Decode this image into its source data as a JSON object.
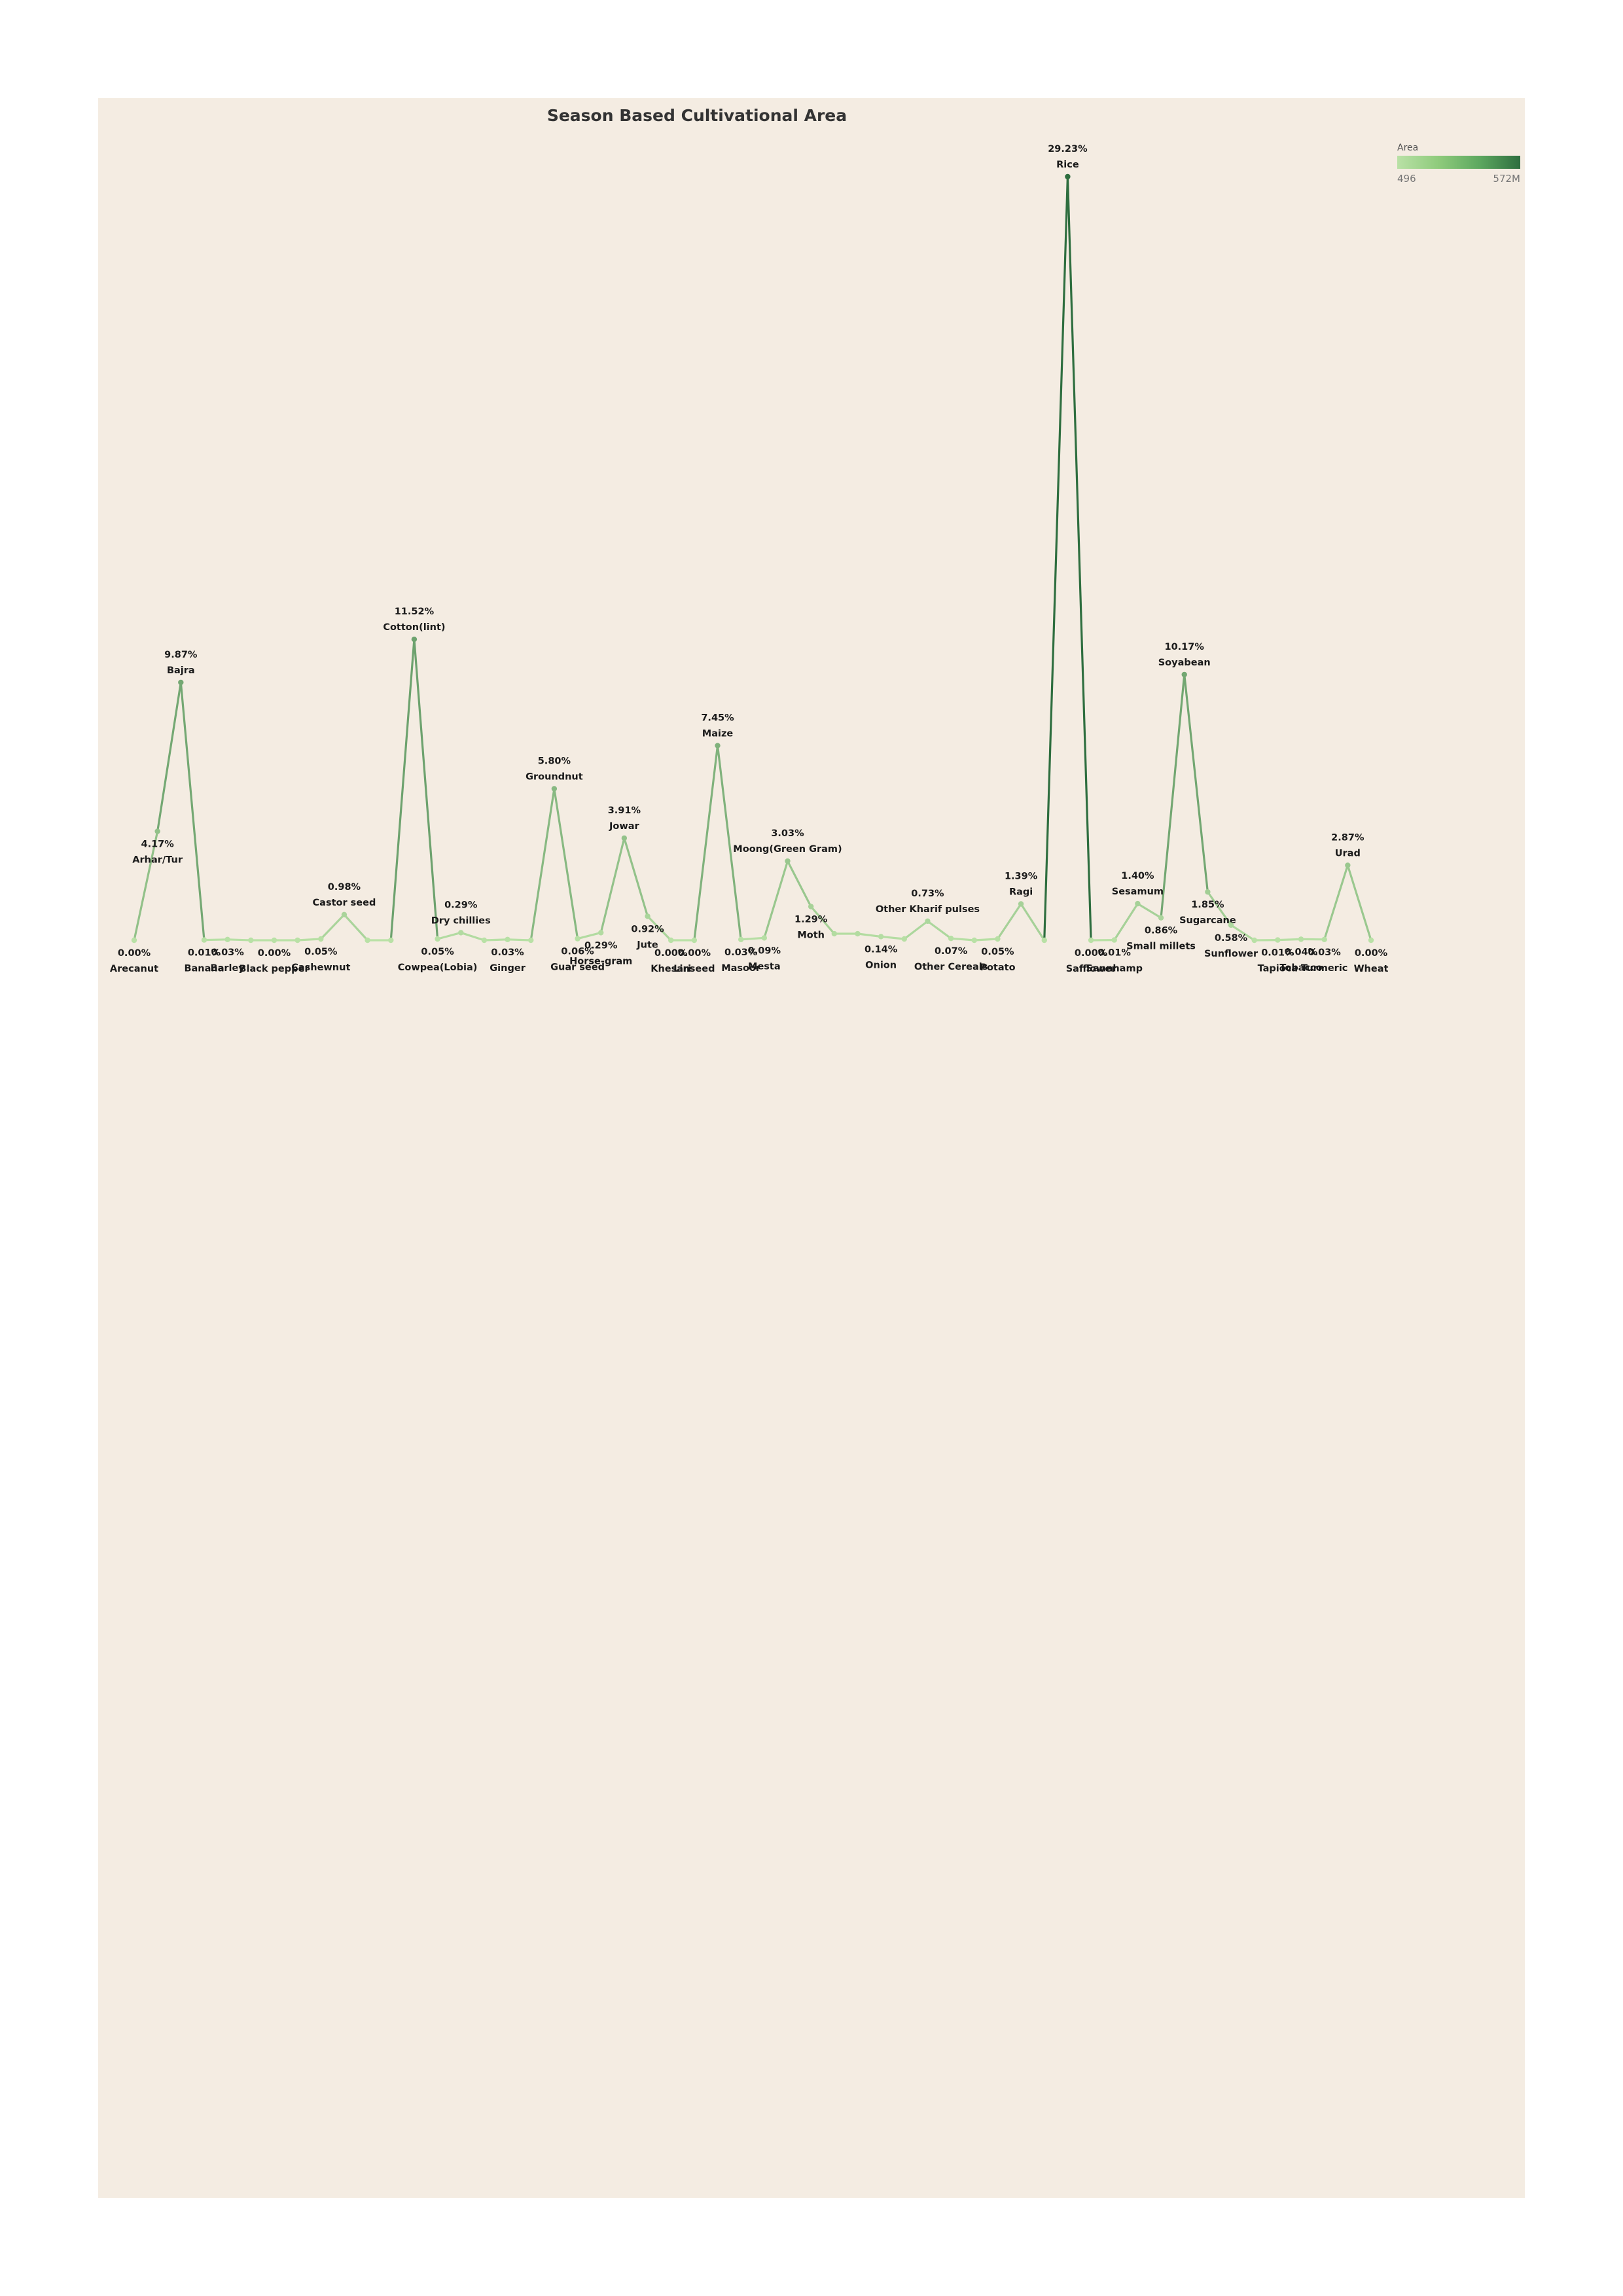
{
  "chart_data": {
    "type": "line",
    "title": "Season Based Cultivational Area",
    "legend": {
      "title": "Area",
      "min_label": "496",
      "max_label": "572M"
    },
    "points": [
      {
        "name": "Arecanut",
        "pct": "0.00%",
        "value": 0.0,
        "labeled": true
      },
      {
        "name": "Arhar/Tur",
        "pct": "4.17%",
        "value": 4.17,
        "labeled": true
      },
      {
        "name": "Bajra",
        "pct": "9.87%",
        "value": 9.87,
        "labeled": true
      },
      {
        "name": "Banana",
        "pct": "0.01%",
        "value": 0.01,
        "labeled": true
      },
      {
        "name": "Barley",
        "pct": "0.03%",
        "value": 0.03,
        "labeled": true
      },
      {
        "name": "",
        "pct": "",
        "value": 0.0,
        "labeled": false
      },
      {
        "name": "Black pepper",
        "pct": "0.00%",
        "value": 0.0,
        "labeled": true
      },
      {
        "name": "",
        "pct": "",
        "value": 0.0,
        "labeled": false
      },
      {
        "name": "Cashewnut",
        "pct": "0.05%",
        "value": 0.05,
        "labeled": true
      },
      {
        "name": "Castor seed",
        "pct": "0.98%",
        "value": 0.98,
        "labeled": true
      },
      {
        "name": "",
        "pct": "",
        "value": 0.0,
        "labeled": false
      },
      {
        "name": "",
        "pct": "",
        "value": 0.0,
        "labeled": false
      },
      {
        "name": "Cotton(lint)",
        "pct": "11.52%",
        "value": 11.52,
        "labeled": true
      },
      {
        "name": "Cowpea(Lobia)",
        "pct": "0.05%",
        "value": 0.05,
        "labeled": true
      },
      {
        "name": "Dry chillies",
        "pct": "0.29%",
        "value": 0.29,
        "labeled": true
      },
      {
        "name": "",
        "pct": "",
        "value": 0.0,
        "labeled": false
      },
      {
        "name": "Ginger",
        "pct": "0.03%",
        "value": 0.03,
        "labeled": true
      },
      {
        "name": "",
        "pct": "",
        "value": 0.0,
        "labeled": false
      },
      {
        "name": "Groundnut",
        "pct": "5.80%",
        "value": 5.8,
        "labeled": true
      },
      {
        "name": "Guar seed",
        "pct": "0.06%",
        "value": 0.06,
        "labeled": true
      },
      {
        "name": "Horse-gram",
        "pct": "0.29%",
        "value": 0.29,
        "labeled": true
      },
      {
        "name": "Jowar",
        "pct": "3.91%",
        "value": 3.91,
        "labeled": true
      },
      {
        "name": "Jute",
        "pct": "0.92%",
        "value": 0.92,
        "labeled": true
      },
      {
        "name": "Khesari",
        "pct": "0.00%",
        "value": 0.0,
        "labeled": true
      },
      {
        "name": "Linseed",
        "pct": "0.00%",
        "value": 0.0,
        "labeled": true
      },
      {
        "name": "Maize",
        "pct": "7.45%",
        "value": 7.45,
        "labeled": true
      },
      {
        "name": "Masoor",
        "pct": "0.03%",
        "value": 0.03,
        "labeled": true
      },
      {
        "name": "Mesta",
        "pct": "0.09%",
        "value": 0.09,
        "labeled": true
      },
      {
        "name": "Moong(Green Gram)",
        "pct": "3.03%",
        "value": 3.03,
        "labeled": true
      },
      {
        "name": "Moth",
        "pct": "1.29%",
        "value": 1.29,
        "labeled": true
      },
      {
        "name": "",
        "pct": "",
        "value": 0.25,
        "labeled": false
      },
      {
        "name": "",
        "pct": "",
        "value": 0.25,
        "labeled": false
      },
      {
        "name": "Onion",
        "pct": "0.14%",
        "value": 0.14,
        "labeled": true
      },
      {
        "name": "",
        "pct": "",
        "value": 0.05,
        "labeled": false
      },
      {
        "name": "Other Kharif pulses",
        "pct": "0.73%",
        "value": 0.73,
        "labeled": true
      },
      {
        "name": "Other Cereals",
        "pct": "0.07%",
        "value": 0.07,
        "labeled": true
      },
      {
        "name": "",
        "pct": "",
        "value": 0.0,
        "labeled": false
      },
      {
        "name": "Potato",
        "pct": "0.05%",
        "value": 0.05,
        "labeled": true
      },
      {
        "name": "Ragi",
        "pct": "1.39%",
        "value": 1.39,
        "labeled": true
      },
      {
        "name": "",
        "pct": "",
        "value": 0.0,
        "labeled": false
      },
      {
        "name": "Rice",
        "pct": "29.23%",
        "value": 29.23,
        "labeled": true
      },
      {
        "name": "Safflower",
        "pct": "0.00%",
        "value": 0.0,
        "labeled": true
      },
      {
        "name": "Sannhamp",
        "pct": "0.01%",
        "value": 0.01,
        "labeled": true
      },
      {
        "name": "Sesamum",
        "pct": "1.40%",
        "value": 1.4,
        "labeled": true
      },
      {
        "name": "Small millets",
        "pct": "0.86%",
        "value": 0.86,
        "labeled": true
      },
      {
        "name": "Soyabean",
        "pct": "10.17%",
        "value": 10.17,
        "labeled": true
      },
      {
        "name": "Sugarcane",
        "pct": "1.85%",
        "value": 1.85,
        "labeled": true
      },
      {
        "name": "Sunflower",
        "pct": "0.58%",
        "value": 0.58,
        "labeled": true
      },
      {
        "name": "",
        "pct": "",
        "value": 0.0,
        "labeled": false
      },
      {
        "name": "Tapioca",
        "pct": "0.01%",
        "value": 0.01,
        "labeled": true
      },
      {
        "name": "Tobacco",
        "pct": "0.04%",
        "value": 0.04,
        "labeled": true
      },
      {
        "name": "Turmeric",
        "pct": "0.03%",
        "value": 0.03,
        "labeled": true
      },
      {
        "name": "Urad",
        "pct": "2.87%",
        "value": 2.87,
        "labeled": true
      },
      {
        "name": "Wheat",
        "pct": "0.00%",
        "value": 0.0,
        "labeled": true
      }
    ]
  }
}
